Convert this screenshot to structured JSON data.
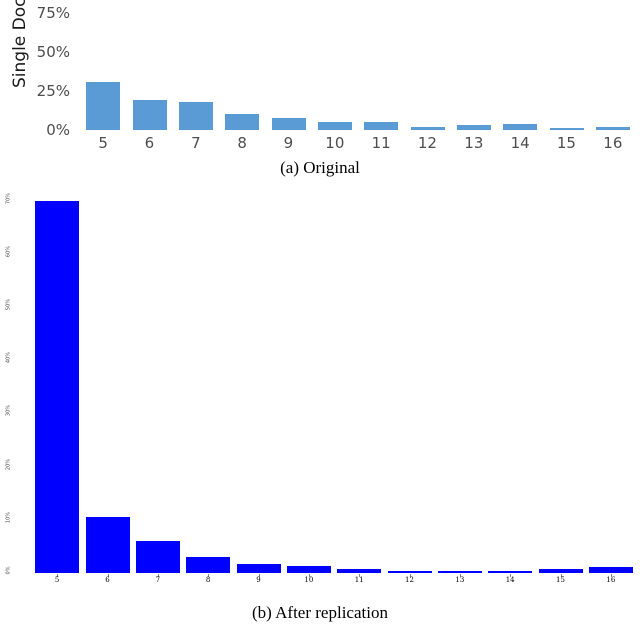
{
  "figure": {
    "captions": {
      "a": "(a) Original",
      "b": "(b) After replication"
    }
  },
  "chart_data": [
    {
      "id": "original",
      "type": "bar",
      "title": "(a) Original",
      "ylabel": "Single Doc",
      "xlabel": "",
      "categories": [
        "5",
        "6",
        "7",
        "8",
        "9",
        "10",
        "11",
        "12",
        "13",
        "14",
        "15",
        "16"
      ],
      "values": [
        31,
        19,
        18,
        10,
        8,
        5,
        5,
        2,
        3,
        4,
        1,
        2
      ],
      "unit": "%",
      "yticks": [
        0,
        25,
        50,
        75
      ],
      "ytick_labels": [
        "0%",
        "25%",
        "50%",
        "75%"
      ],
      "ylim": [
        0,
        83
      ],
      "bar_color": "#5b9bd5",
      "grid": false,
      "legend": "none"
    },
    {
      "id": "after-replication",
      "type": "bar",
      "title": "(b) After replication",
      "ylabel": "",
      "xlabel": "",
      "categories": [
        "5",
        "6",
        "7",
        "8",
        "9",
        "10",
        "11",
        "12",
        "13",
        "14",
        "15",
        "16"
      ],
      "values": [
        70,
        10.5,
        6,
        3,
        1.7,
        1.3,
        0.8,
        0.4,
        0.4,
        0.4,
        0.8,
        1.2
      ],
      "unit": "%",
      "yticks": [
        0,
        10,
        20,
        30,
        40,
        50,
        60,
        70
      ],
      "ytick_labels": [
        "0%",
        "10%",
        "20%",
        "30%",
        "40%",
        "50%",
        "60%",
        "70%"
      ],
      "ylim": [
        0,
        71
      ],
      "bar_color": "#0000ff",
      "grid": false,
      "legend": "none"
    }
  ]
}
